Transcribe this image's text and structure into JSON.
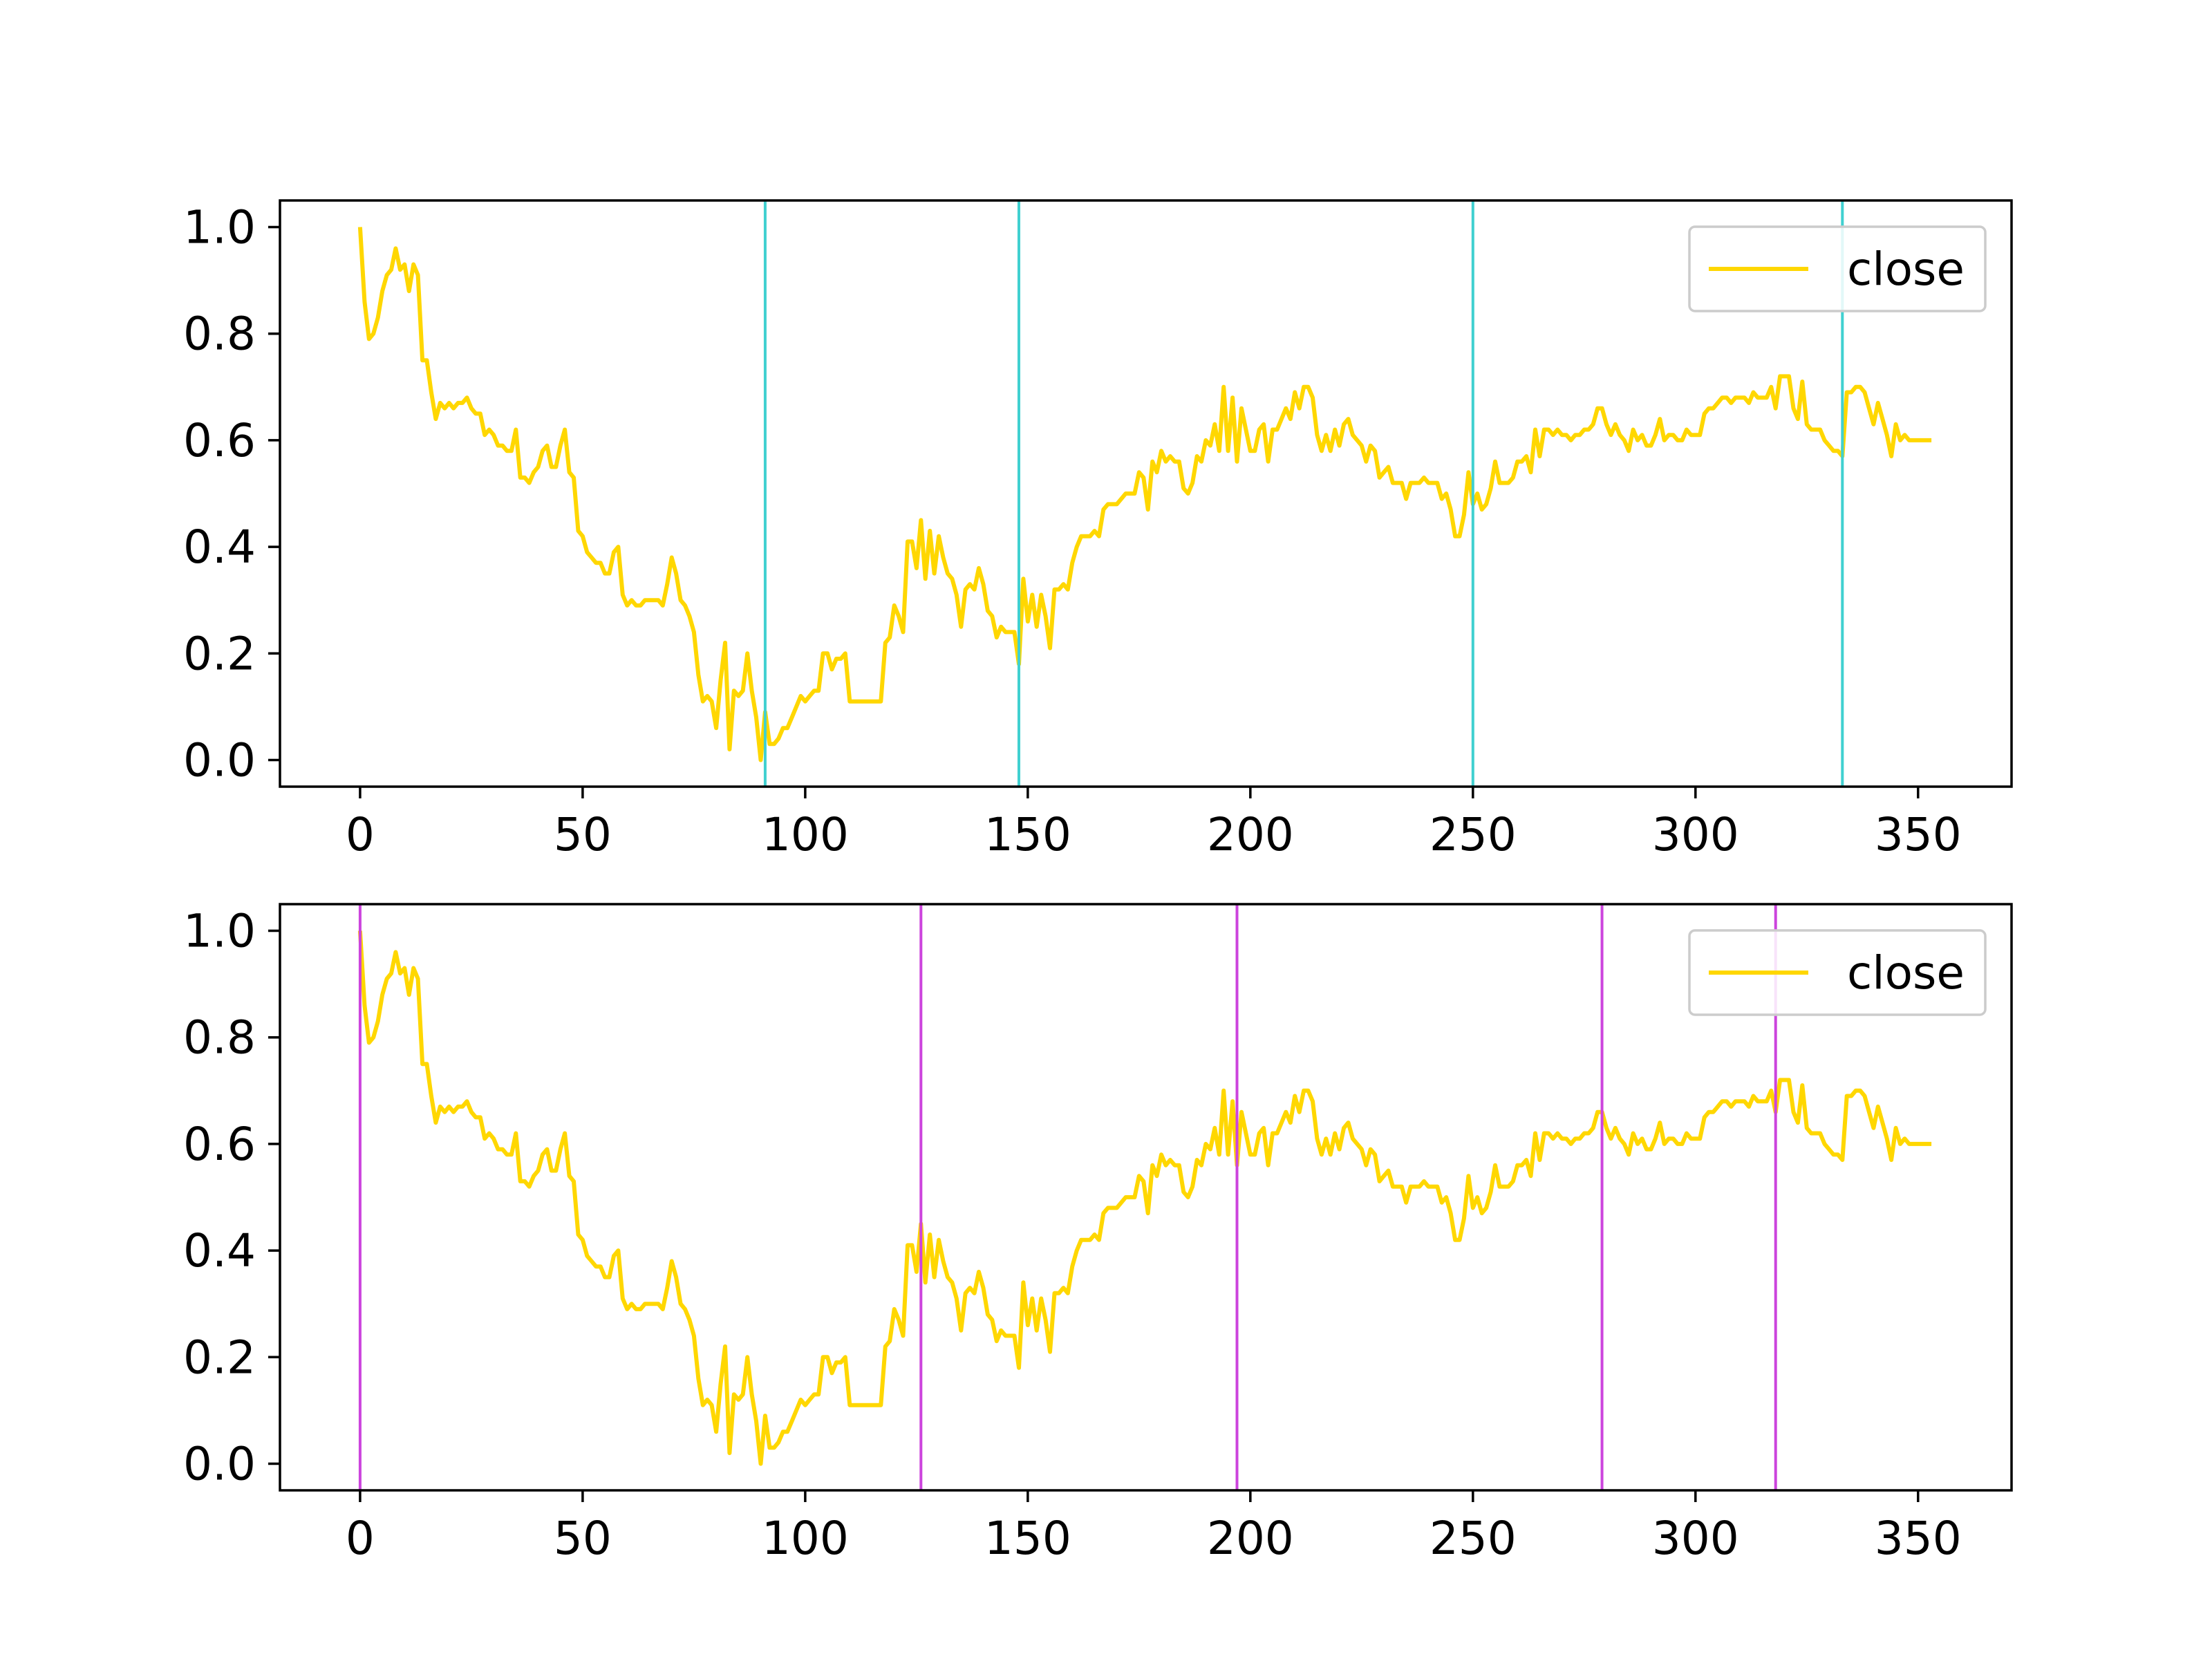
{
  "colors": {
    "close": "#FFD700",
    "marker_top": "#40D0D0",
    "marker_bottom": "#CC44DD",
    "axes": "#000000",
    "legend_frame": "#CCCCCC"
  },
  "chart_data": [
    {
      "type": "line",
      "legend": "top-right",
      "grid": false,
      "xlim": [
        -18,
        371
      ],
      "ylim": [
        -0.05,
        1.05
      ],
      "x_ticks": [
        "0",
        "50",
        "100",
        "150",
        "200",
        "250",
        "300",
        "350"
      ],
      "y_ticks": [
        "0.0",
        "0.2",
        "0.4",
        "0.6",
        "0.8",
        "1.0"
      ],
      "series": [
        {
          "name": "close",
          "x_start": 0,
          "x_step": 1,
          "values": [
            1.0,
            0.86,
            0.79,
            0.8,
            0.83,
            0.88,
            0.91,
            0.92,
            0.96,
            0.92,
            0.93,
            0.88,
            0.93,
            0.91,
            0.75,
            0.75,
            0.69,
            0.64,
            0.67,
            0.66,
            0.67,
            0.66,
            0.67,
            0.67,
            0.68,
            0.66,
            0.65,
            0.65,
            0.61,
            0.62,
            0.61,
            0.59,
            0.59,
            0.58,
            0.58,
            0.62,
            0.53,
            0.53,
            0.52,
            0.54,
            0.55,
            0.58,
            0.59,
            0.55,
            0.55,
            0.59,
            0.62,
            0.54,
            0.53,
            0.43,
            0.42,
            0.39,
            0.38,
            0.37,
            0.37,
            0.35,
            0.35,
            0.39,
            0.4,
            0.31,
            0.29,
            0.3,
            0.29,
            0.29,
            0.3,
            0.3,
            0.3,
            0.3,
            0.29,
            0.33,
            0.38,
            0.35,
            0.3,
            0.29,
            0.27,
            0.24,
            0.16,
            0.11,
            0.12,
            0.11,
            0.06,
            0.15,
            0.22,
            0.02,
            0.13,
            0.12,
            0.13,
            0.2,
            0.13,
            0.08,
            0.0,
            0.09,
            0.03,
            0.03,
            0.04,
            0.06,
            0.06,
            0.08,
            0.1,
            0.12,
            0.11,
            0.12,
            0.13,
            0.13,
            0.2,
            0.2,
            0.17,
            0.19,
            0.19,
            0.2,
            0.11,
            0.11,
            0.11,
            0.11,
            0.11,
            0.11,
            0.11,
            0.11,
            0.22,
            0.23,
            0.29,
            0.27,
            0.24,
            0.41,
            0.41,
            0.36,
            0.45,
            0.34,
            0.43,
            0.35,
            0.42,
            0.38,
            0.35,
            0.34,
            0.31,
            0.25,
            0.32,
            0.33,
            0.32,
            0.36,
            0.33,
            0.28,
            0.27,
            0.23,
            0.25,
            0.24,
            0.24,
            0.24,
            0.18,
            0.34,
            0.26,
            0.31,
            0.25,
            0.31,
            0.27,
            0.21,
            0.32,
            0.32,
            0.33,
            0.32,
            0.37,
            0.4,
            0.42,
            0.42,
            0.42,
            0.43,
            0.42,
            0.47,
            0.48,
            0.48,
            0.48,
            0.49,
            0.5,
            0.5,
            0.5,
            0.54,
            0.53,
            0.47,
            0.56,
            0.54,
            0.58,
            0.56,
            0.57,
            0.56,
            0.56,
            0.51,
            0.5,
            0.52,
            0.57,
            0.56,
            0.6,
            0.59,
            0.63,
            0.58,
            0.7,
            0.58,
            0.68,
            0.56,
            0.66,
            0.62,
            0.58,
            0.58,
            0.62,
            0.63,
            0.56,
            0.62,
            0.62,
            0.64,
            0.66,
            0.64,
            0.69,
            0.66,
            0.7,
            0.7,
            0.68,
            0.61,
            0.58,
            0.61,
            0.58,
            0.62,
            0.59,
            0.63,
            0.64,
            0.61,
            0.6,
            0.59,
            0.56,
            0.59,
            0.58,
            0.53,
            0.54,
            0.55,
            0.52,
            0.52,
            0.52,
            0.49,
            0.52,
            0.52,
            0.52,
            0.53,
            0.52,
            0.52,
            0.52,
            0.49,
            0.5,
            0.47,
            0.42,
            0.42,
            0.46,
            0.54,
            0.48,
            0.5,
            0.47,
            0.48,
            0.51,
            0.56,
            0.52,
            0.52,
            0.52,
            0.53,
            0.56,
            0.56,
            0.57,
            0.54,
            0.62,
            0.57,
            0.62,
            0.62,
            0.61,
            0.62,
            0.61,
            0.61,
            0.6,
            0.61,
            0.61,
            0.62,
            0.62,
            0.63,
            0.66,
            0.66,
            0.63,
            0.61,
            0.63,
            0.61,
            0.6,
            0.58,
            0.62,
            0.6,
            0.61,
            0.59,
            0.59,
            0.61,
            0.64,
            0.6,
            0.61,
            0.61,
            0.6,
            0.6,
            0.62,
            0.61,
            0.61,
            0.61,
            0.65,
            0.66,
            0.66,
            0.67,
            0.68,
            0.68,
            0.67,
            0.68,
            0.68,
            0.68,
            0.67,
            0.69,
            0.68,
            0.68,
            0.68,
            0.7,
            0.66,
            0.72,
            0.72,
            0.72,
            0.66,
            0.64,
            0.71,
            0.63,
            0.62,
            0.62,
            0.62,
            0.6,
            0.59,
            0.58,
            0.58,
            0.57,
            0.69,
            0.69,
            0.7,
            0.7,
            0.69,
            0.66,
            0.63,
            0.67,
            0.64,
            0.61,
            0.57,
            0.63,
            0.6,
            0.61,
            0.6,
            0.6,
            0.6,
            0.6,
            0.6,
            0.6
          ]
        }
      ],
      "vlines": [
        91,
        148,
        250,
        333
      ]
    },
    {
      "type": "line",
      "legend": "top-right",
      "grid": false,
      "xlim": [
        -18,
        371
      ],
      "ylim": [
        -0.05,
        1.05
      ],
      "x_ticks": [
        "0",
        "50",
        "100",
        "150",
        "200",
        "250",
        "300",
        "350"
      ],
      "y_ticks": [
        "0.0",
        "0.2",
        "0.4",
        "0.6",
        "0.8",
        "1.0"
      ],
      "series": [
        {
          "name": "close",
          "same_as_top": true
        }
      ],
      "vlines": [
        0,
        126,
        197,
        279,
        318
      ]
    }
  ]
}
